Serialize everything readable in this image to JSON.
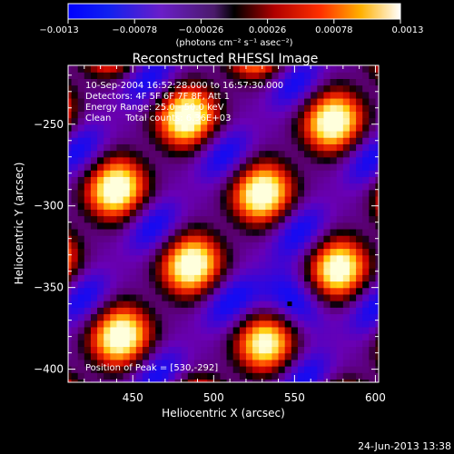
{
  "chart_data": {
    "type": "heatmap",
    "title": "Reconstructed RHESSI Image",
    "xlabel": "Heliocentric X (arcsec)",
    "ylabel": "Heliocentric Y (arcsec)",
    "xlim": [
      410,
      602
    ],
    "ylim": [
      -408,
      -214
    ],
    "x_ticks": [
      450,
      500,
      550,
      600
    ],
    "x_tick_labels": [
      "450",
      "500",
      "550",
      "600"
    ],
    "y_ticks": [
      -250,
      -300,
      -350,
      -400
    ],
    "y_tick_labels": [
      "−250",
      "−300",
      "−350",
      "−400"
    ],
    "colorbar": {
      "range": [
        -0.0013,
        0.0013
      ],
      "ticks": [
        -0.0013,
        -0.00078,
        -0.00026,
        0.00026,
        0.00078,
        0.0013
      ],
      "tick_labels": [
        "−0.0013",
        "−0.00078",
        "−0.00026",
        "0.00026",
        "0.00078",
        "0.0013"
      ],
      "unit_label": "(photons cm⁻² s⁻¹ asec⁻²)"
    },
    "annotations": {
      "time_range": "10-Sep-2004 16:52:28.000 to 16:57:30.000",
      "detectors": "Detectors: 4F 5F 6F 7F 8F, Att 1",
      "energy_range": "Energy Range: 25.0 - 50.0 keV",
      "clean_counts": "Clean     Total counts: 6.36E+03",
      "peak_position": "Position of Peak = [530,-292]"
    },
    "marker": {
      "x": 547,
      "y": -360
    },
    "grid": false,
    "legend": "none"
  },
  "footer": {
    "timestamp": "24-Jun-2013 13:38"
  }
}
